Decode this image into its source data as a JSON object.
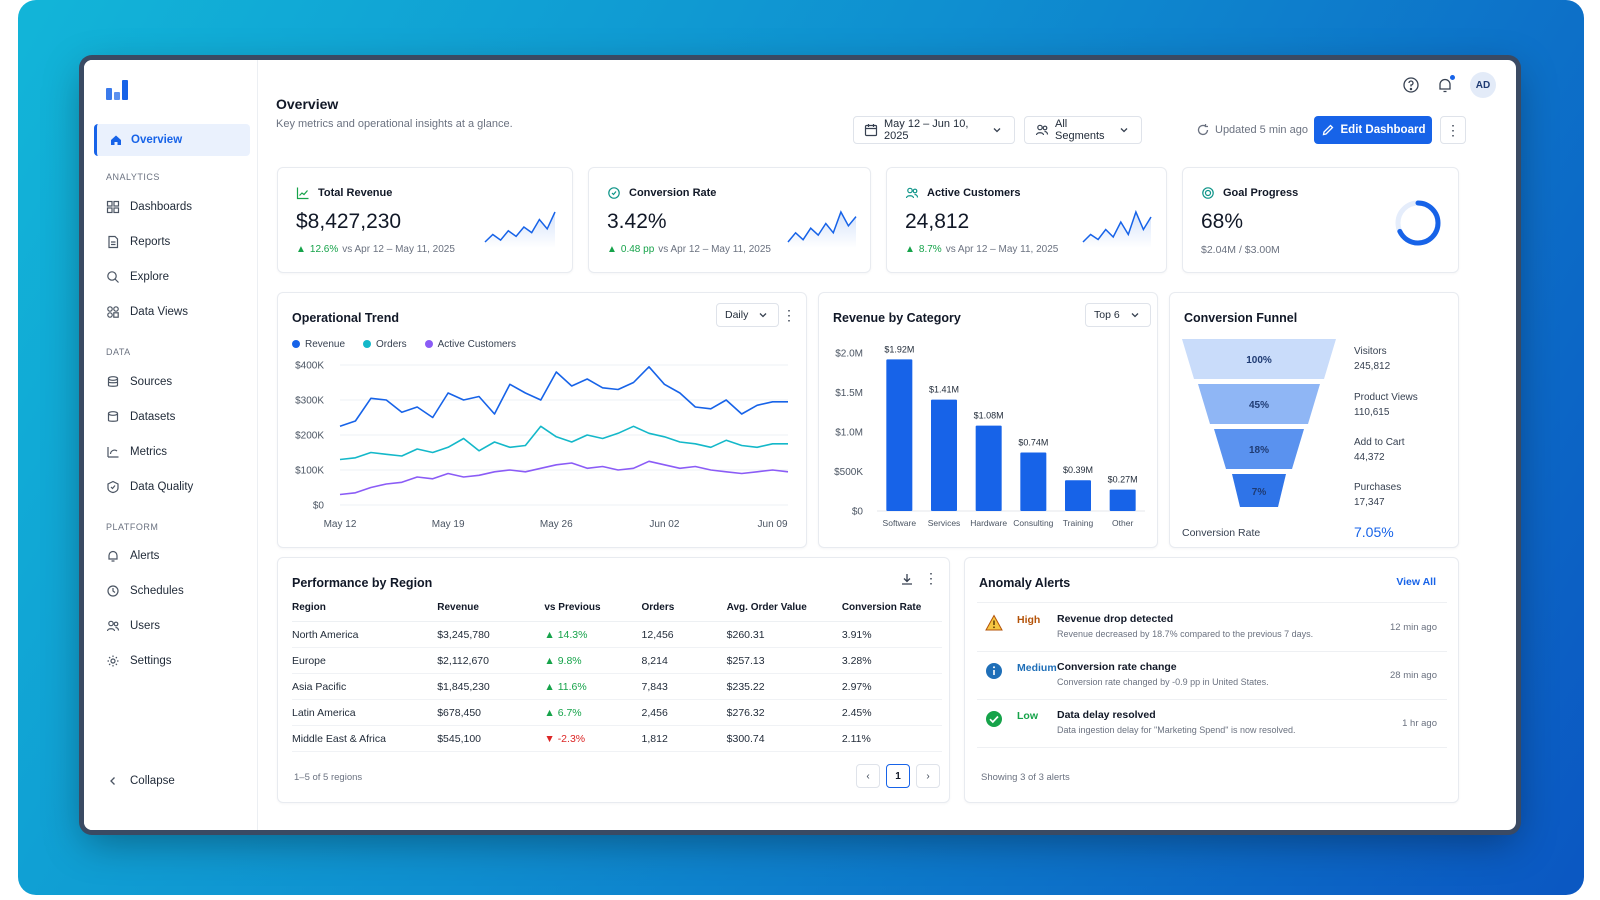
{
  "sidebar": {
    "active": "Overview",
    "sections": {
      "analytics": "ANALYTICS",
      "data": "DATA",
      "platform": "PLATFORM"
    },
    "items": {
      "dashboards": "Dashboards",
      "reports": "Reports",
      "explore": "Explore",
      "data_views": "Data Views",
      "sources": "Sources",
      "datasets": "Datasets",
      "metrics": "Metrics",
      "data_quality": "Data Quality",
      "alerts": "Alerts",
      "schedules": "Schedules",
      "users": "Users",
      "settings": "Settings"
    },
    "collapse": "Collapse"
  },
  "header": {
    "title": "Overview",
    "subtitle": "Key metrics and operational insights at a glance.",
    "date_range": "May 12 – Jun 10, 2025",
    "segments": "All Segments",
    "updated": "Updated 5 min ago",
    "edit_button": "Edit Dashboard",
    "avatar": "AD"
  },
  "kpis": [
    {
      "title": "Total Revenue",
      "value": "$8,427,230",
      "delta": "12.6%",
      "compare": "vs Apr 12 – May 11, 2025",
      "spark": [
        10,
        14,
        11,
        16,
        13,
        18,
        15,
        22,
        17,
        26
      ]
    },
    {
      "title": "Conversion Rate",
      "value": "3.42%",
      "delta": "0.48 pp",
      "compare": "vs Apr 12 – May 11, 2025",
      "spark": [
        11,
        15,
        12,
        17,
        14,
        19,
        15,
        24,
        18,
        22
      ]
    },
    {
      "title": "Active Customers",
      "value": "24,812",
      "delta": "8.7%",
      "compare": "vs Apr 12 – May 11, 2025",
      "spark": [
        12,
        15,
        13,
        17,
        14,
        20,
        15,
        24,
        17,
        22
      ]
    },
    {
      "title": "Goal Progress",
      "value": "68%",
      "progress": 0.68,
      "sub": "$2.04M / $3.00M"
    }
  ],
  "trend": {
    "title": "Operational Trend",
    "period": "Daily",
    "legend": [
      "Revenue",
      "Orders",
      "Active Customers"
    ],
    "colors": [
      "#1763e8",
      "#14b8c9",
      "#8b5cf6"
    ]
  },
  "category": {
    "title": "Revenue by Category",
    "filter": "Top 6"
  },
  "funnel": {
    "title": "Conversion Funnel",
    "stages": [
      {
        "pct": "100%",
        "label": "Visitors",
        "value": "245,812"
      },
      {
        "pct": "45%",
        "label": "Product Views",
        "value": "110,615"
      },
      {
        "pct": "18%",
        "label": "Add to Cart",
        "value": "44,372"
      },
      {
        "pct": "7%",
        "label": "Purchases",
        "value": "17,347"
      }
    ],
    "rate_label": "Conversion Rate",
    "rate_value": "7.05%"
  },
  "region": {
    "title": "Performance by Region",
    "columns": [
      "Region",
      "Revenue",
      "vs Previous",
      "Orders",
      "Avg. Order Value",
      "Conversion Rate"
    ],
    "rows": [
      [
        "North America",
        "$3,245,780",
        "14.3%",
        "12,456",
        "$260.31",
        "3.91%",
        "up"
      ],
      [
        "Europe",
        "$2,112,670",
        "9.8%",
        "8,214",
        "$257.13",
        "3.28%",
        "up"
      ],
      [
        "Asia Pacific",
        "$1,845,230",
        "11.6%",
        "7,843",
        "$235.22",
        "2.97%",
        "up"
      ],
      [
        "Latin America",
        "$678,450",
        "6.7%",
        "2,456",
        "$276.32",
        "2.45%",
        "up"
      ],
      [
        "Middle East & Africa",
        "$545,100",
        "-2.3%",
        "1,812",
        "$300.74",
        "2.11%",
        "down"
      ]
    ],
    "footer": "1–5 of 5 regions",
    "page": "1"
  },
  "alerts": {
    "title": "Anomaly Alerts",
    "view_all": "View All",
    "items": [
      {
        "severity": "High",
        "title": "Revenue drop detected",
        "desc": "Revenue decreased by 18.7% compared to the previous 7 days.",
        "time": "12 min ago",
        "color": "#b45309"
      },
      {
        "severity": "Medium",
        "title": "Conversion rate change",
        "desc": "Conversion rate changed by -0.9 pp in United States.",
        "time": "28 min ago",
        "color": "#1f6fb8"
      },
      {
        "severity": "Low",
        "title": "Data delay resolved",
        "desc": "Data ingestion delay for \"Marketing Spend\" is now resolved.",
        "time": "1 hr ago",
        "color": "#16a34a"
      }
    ],
    "footer": "Showing 3 of 3 alerts"
  },
  "chart_data": [
    {
      "type": "line",
      "title": "Operational Trend",
      "x": [
        "May 12",
        "May 13",
        "May 14",
        "May 15",
        "May 16",
        "May 17",
        "May 18",
        "May 19",
        "May 20",
        "May 21",
        "May 22",
        "May 23",
        "May 24",
        "May 25",
        "May 26",
        "May 27",
        "May 28",
        "May 29",
        "May 30",
        "May 31",
        "Jun 01",
        "Jun 02",
        "Jun 03",
        "Jun 04",
        "Jun 05",
        "Jun 06",
        "Jun 07",
        "Jun 08",
        "Jun 09",
        "Jun 10"
      ],
      "x_ticks": [
        "May 12",
        "May 19",
        "May 26",
        "Jun 02",
        "Jun 09"
      ],
      "y_ticks": [
        "$0",
        "$100K",
        "$200K",
        "$300K",
        "$400K"
      ],
      "ylim": [
        0,
        400000
      ],
      "series": [
        {
          "name": "Revenue",
          "values": [
            225000,
            240000,
            305000,
            300000,
            265000,
            280000,
            250000,
            320000,
            300000,
            310000,
            260000,
            345000,
            320000,
            300000,
            380000,
            340000,
            360000,
            335000,
            330000,
            350000,
            395000,
            345000,
            320000,
            280000,
            275000,
            300000,
            260000,
            285000,
            295000,
            295000
          ]
        },
        {
          "name": "Orders",
          "values": [
            130000,
            135000,
            150000,
            145000,
            140000,
            160000,
            150000,
            165000,
            190000,
            155000,
            180000,
            165000,
            170000,
            225000,
            195000,
            180000,
            200000,
            190000,
            205000,
            225000,
            205000,
            195000,
            180000,
            175000,
            165000,
            185000,
            170000,
            165000,
            175000,
            175000
          ]
        },
        {
          "name": "Active Customers",
          "values": [
            30000,
            35000,
            50000,
            60000,
            65000,
            80000,
            75000,
            90000,
            80000,
            85000,
            95000,
            100000,
            95000,
            105000,
            115000,
            120000,
            105000,
            110000,
            100000,
            105000,
            125000,
            115000,
            105000,
            110000,
            100000,
            95000,
            90000,
            95000,
            100000,
            95000
          ]
        }
      ]
    },
    {
      "type": "bar",
      "title": "Revenue by Category",
      "categories": [
        "Software",
        "Services",
        "Hardware",
        "Consulting",
        "Training",
        "Other"
      ],
      "values": [
        1.92,
        1.41,
        1.08,
        0.74,
        0.39,
        0.27
      ],
      "labels": [
        "$1.92M",
        "$1.41M",
        "$1.08M",
        "$0.74M",
        "$0.39M",
        "$0.27M"
      ],
      "y_ticks": [
        "$0",
        "$500K",
        "$1.0M",
        "$1.5M",
        "$2.0M"
      ],
      "ylim": [
        0,
        2.0
      ],
      "color": "#1763e8"
    }
  ]
}
